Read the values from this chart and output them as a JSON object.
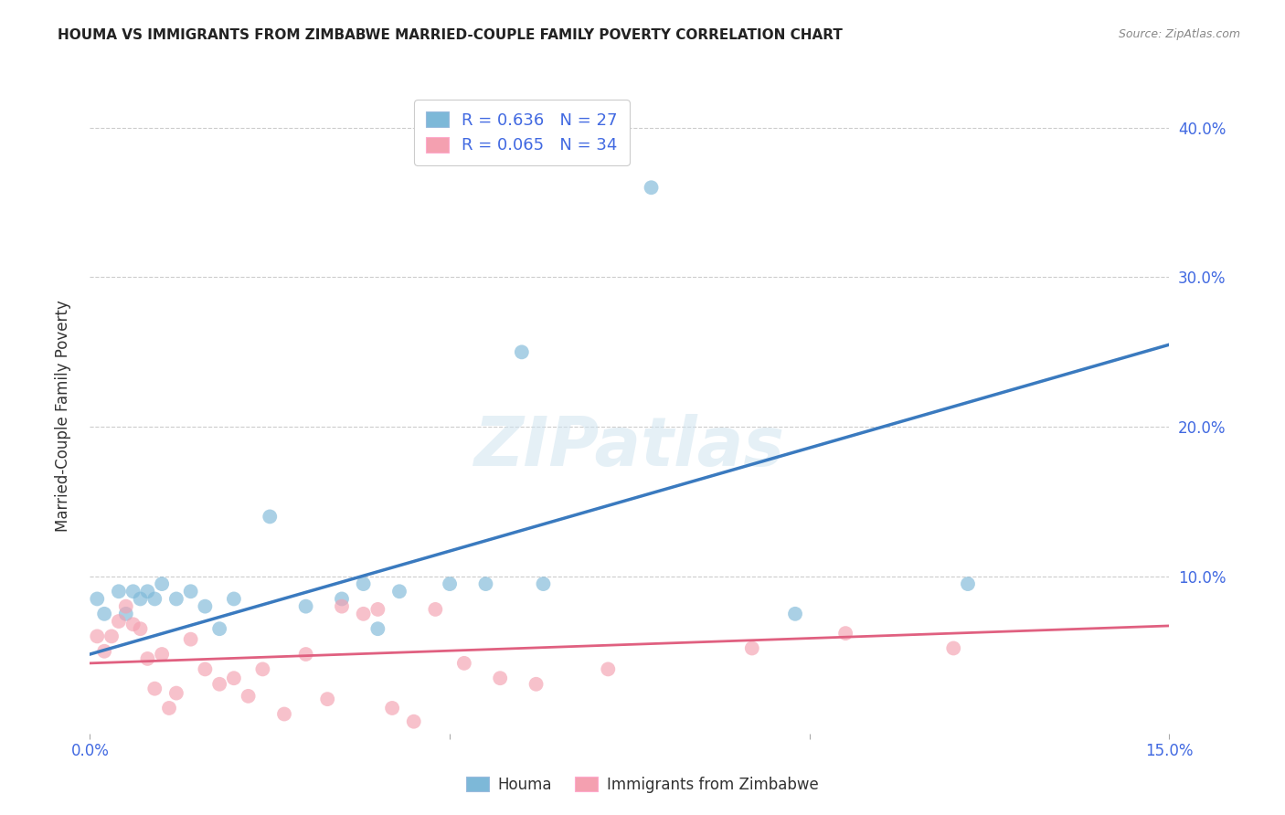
{
  "title": "HOUMA VS IMMIGRANTS FROM ZIMBABWE MARRIED-COUPLE FAMILY POVERTY CORRELATION CHART",
  "source": "Source: ZipAtlas.com",
  "ylabel": "Married-Couple Family Poverty",
  "xlabel": "",
  "xlim": [
    0.0,
    0.15
  ],
  "ylim": [
    -0.005,
    0.42
  ],
  "houma_R": 0.636,
  "houma_N": 27,
  "zimbabwe_R": 0.065,
  "zimbabwe_N": 34,
  "houma_color": "#7db8d8",
  "houma_line_color": "#3a7abf",
  "zimbabwe_color": "#f4a0b0",
  "zimbabwe_line_color": "#e06080",
  "background_color": "#ffffff",
  "grid_color": "#cccccc",
  "legend_label_1": "Houma",
  "legend_label_2": "Immigrants from Zimbabwe",
  "houma_x": [
    0.001,
    0.002,
    0.004,
    0.005,
    0.006,
    0.007,
    0.008,
    0.009,
    0.01,
    0.012,
    0.014,
    0.016,
    0.018,
    0.02,
    0.025,
    0.03,
    0.035,
    0.038,
    0.04,
    0.043,
    0.05,
    0.055,
    0.06,
    0.063,
    0.078,
    0.098,
    0.122
  ],
  "houma_y": [
    0.085,
    0.075,
    0.09,
    0.075,
    0.09,
    0.085,
    0.09,
    0.085,
    0.095,
    0.085,
    0.09,
    0.08,
    0.065,
    0.085,
    0.14,
    0.08,
    0.085,
    0.095,
    0.065,
    0.09,
    0.095,
    0.095,
    0.25,
    0.095,
    0.36,
    0.075,
    0.095
  ],
  "zimbabwe_x": [
    0.001,
    0.002,
    0.003,
    0.004,
    0.005,
    0.006,
    0.007,
    0.008,
    0.009,
    0.01,
    0.011,
    0.012,
    0.014,
    0.016,
    0.018,
    0.02,
    0.022,
    0.024,
    0.027,
    0.03,
    0.033,
    0.035,
    0.038,
    0.04,
    0.042,
    0.045,
    0.048,
    0.052,
    0.057,
    0.062,
    0.072,
    0.092,
    0.105,
    0.12
  ],
  "zimbabwe_y": [
    0.06,
    0.05,
    0.06,
    0.07,
    0.08,
    0.068,
    0.065,
    0.045,
    0.025,
    0.048,
    0.012,
    0.022,
    0.058,
    0.038,
    0.028,
    0.032,
    0.02,
    0.038,
    0.008,
    0.048,
    0.018,
    0.08,
    0.075,
    0.078,
    0.012,
    0.003,
    0.078,
    0.042,
    0.032,
    0.028,
    0.038,
    0.052,
    0.062,
    0.052
  ],
  "houma_line_x": [
    0.0,
    0.15
  ],
  "houma_line_y": [
    0.048,
    0.255
  ],
  "zimbabwe_line_x": [
    0.0,
    0.15
  ],
  "zimbabwe_line_y": [
    0.042,
    0.067
  ]
}
